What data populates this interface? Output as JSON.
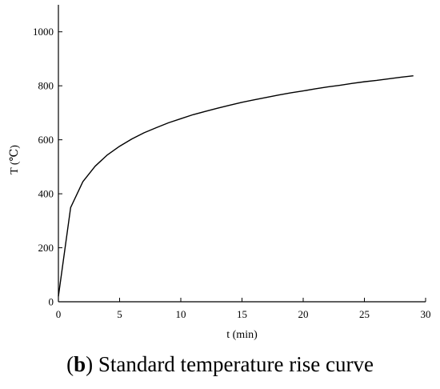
{
  "caption": {
    "open_paren": "(",
    "letter": "b",
    "text": ") Standard temperature rise curve"
  },
  "chart_data": {
    "type": "line",
    "title": "",
    "xlabel": "t (min)",
    "ylabel": "T (℃)",
    "xlim": [
      0,
      30
    ],
    "ylim": [
      0,
      1100
    ],
    "xticks": [
      0,
      5,
      10,
      15,
      20,
      25,
      30
    ],
    "yticks": [
      0,
      200,
      400,
      600,
      800,
      1000
    ],
    "grid": false,
    "series": [
      {
        "color": "#000000",
        "x": [
          0,
          1,
          2,
          3,
          4,
          5,
          6,
          7,
          8,
          9,
          10,
          11,
          12,
          13,
          14,
          15,
          16,
          17,
          18,
          19,
          20,
          21,
          22,
          23,
          24,
          25,
          26,
          27,
          28,
          29
        ],
        "y": [
          20,
          349,
          445,
          502,
          544,
          576,
          603,
          626,
          645,
          663,
          678,
          693,
          705,
          717,
          728,
          739,
          748,
          757,
          766,
          774,
          781,
          789,
          796,
          802,
          809,
          815,
          820,
          826,
          832,
          837
        ]
      }
    ]
  }
}
